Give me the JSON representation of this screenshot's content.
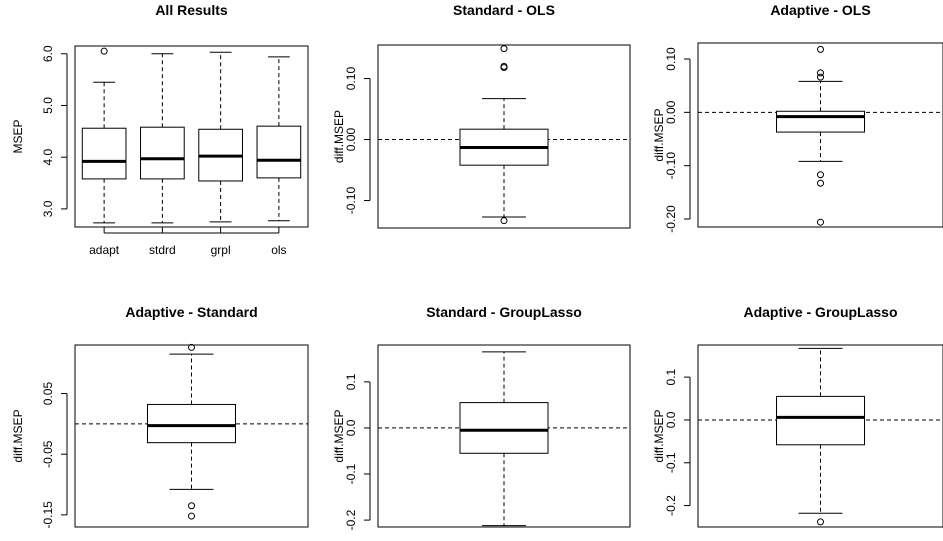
{
  "chart_data": [
    {
      "type": "boxplot",
      "title": "All Results",
      "ylabel": "MSEP",
      "ylim": [
        2.65,
        6.15
      ],
      "yticks": [
        3.0,
        4.0,
        5.0,
        6.0
      ],
      "ytick_labels": [
        "3.0",
        "4.0",
        "5.0",
        "6.0"
      ],
      "refline": null,
      "boxes": [
        {
          "label": "adapt",
          "lower_whisker": 2.73,
          "q1": 3.58,
          "median": 3.92,
          "q3": 4.56,
          "upper_whisker": 5.45,
          "outliers": [
            6.05
          ]
        },
        {
          "label": "stdrd",
          "lower_whisker": 2.73,
          "q1": 3.58,
          "median": 3.97,
          "q3": 4.58,
          "upper_whisker": 6.0,
          "outliers": []
        },
        {
          "label": "grpl",
          "lower_whisker": 2.75,
          "q1": 3.54,
          "median": 4.02,
          "q3": 4.54,
          "upper_whisker": 6.03,
          "outliers": []
        },
        {
          "label": "ols",
          "lower_whisker": 2.77,
          "q1": 3.6,
          "median": 3.94,
          "q3": 4.6,
          "upper_whisker": 5.94,
          "outliers": []
        }
      ]
    },
    {
      "type": "boxplot",
      "title": "Standard - OLS",
      "ylabel": "diff.MSEP",
      "ylim": [
        -0.145,
        0.155
      ],
      "yticks": [
        -0.1,
        0.0,
        0.1
      ],
      "ytick_labels": [
        "-0.10",
        "0.00",
        "0.10"
      ],
      "refline": 0,
      "boxes": [
        {
          "label": "",
          "lower_whisker": -0.127,
          "q1": -0.042,
          "median": -0.013,
          "q3": 0.017,
          "upper_whisker": 0.067,
          "outliers": [
            0.149,
            0.118,
            0.12,
            -0.133
          ]
        }
      ]
    },
    {
      "type": "boxplot",
      "title": "Adaptive - OLS",
      "ylabel": "diff.MSEP",
      "ylim": [
        -0.215,
        0.13
      ],
      "yticks": [
        -0.2,
        -0.1,
        0.0,
        0.1
      ],
      "ytick_labels": [
        "-0.20",
        "-0.10",
        "0.00",
        "0.10"
      ],
      "refline": 0,
      "boxes": [
        {
          "label": "",
          "lower_whisker": -0.092,
          "q1": -0.037,
          "median": -0.008,
          "q3": 0.002,
          "upper_whisker": 0.058,
          "outliers": [
            0.118,
            0.074,
            0.066,
            -0.117,
            -0.133,
            -0.206
          ]
        }
      ]
    },
    {
      "type": "boxplot",
      "title": "Adaptive - Standard",
      "ylabel": "diff.MSEP",
      "ylim": [
        -0.17,
        0.13
      ],
      "yticks": [
        -0.15,
        -0.05,
        0.05
      ],
      "ytick_labels": [
        "-0.15",
        "-0.05",
        "0.05"
      ],
      "refline": 0,
      "boxes": [
        {
          "label": "",
          "lower_whisker": -0.108,
          "q1": -0.031,
          "median": -0.003,
          "q3": 0.032,
          "upper_whisker": 0.115,
          "outliers": [
            0.126,
            -0.135,
            -0.152
          ]
        }
      ]
    },
    {
      "type": "boxplot",
      "title": "Standard - GroupLasso",
      "ylabel": "diff.MSEP",
      "ylim": [
        -0.215,
        0.18
      ],
      "yticks": [
        -0.2,
        -0.1,
        0.0,
        0.1
      ],
      "ytick_labels": [
        "-0.2",
        "-0.1",
        "0.0",
        "0.1"
      ],
      "refline": 0,
      "boxes": [
        {
          "label": "",
          "lower_whisker": -0.212,
          "q1": -0.055,
          "median": -0.005,
          "q3": 0.055,
          "upper_whisker": 0.165,
          "outliers": []
        }
      ]
    },
    {
      "type": "boxplot",
      "title": "Adaptive - GroupLasso",
      "ylabel": "diff.MSEP",
      "ylim": [
        -0.25,
        0.175
      ],
      "yticks": [
        -0.2,
        -0.1,
        0.0,
        0.1
      ],
      "ytick_labels": [
        "-0.2",
        "-0.1",
        "0.0",
        "0.1"
      ],
      "refline": 0,
      "boxes": [
        {
          "label": "",
          "lower_whisker": -0.218,
          "q1": -0.058,
          "median": 0.006,
          "q3": 0.055,
          "upper_whisker": 0.167,
          "outliers": [
            -0.238
          ]
        }
      ]
    }
  ]
}
